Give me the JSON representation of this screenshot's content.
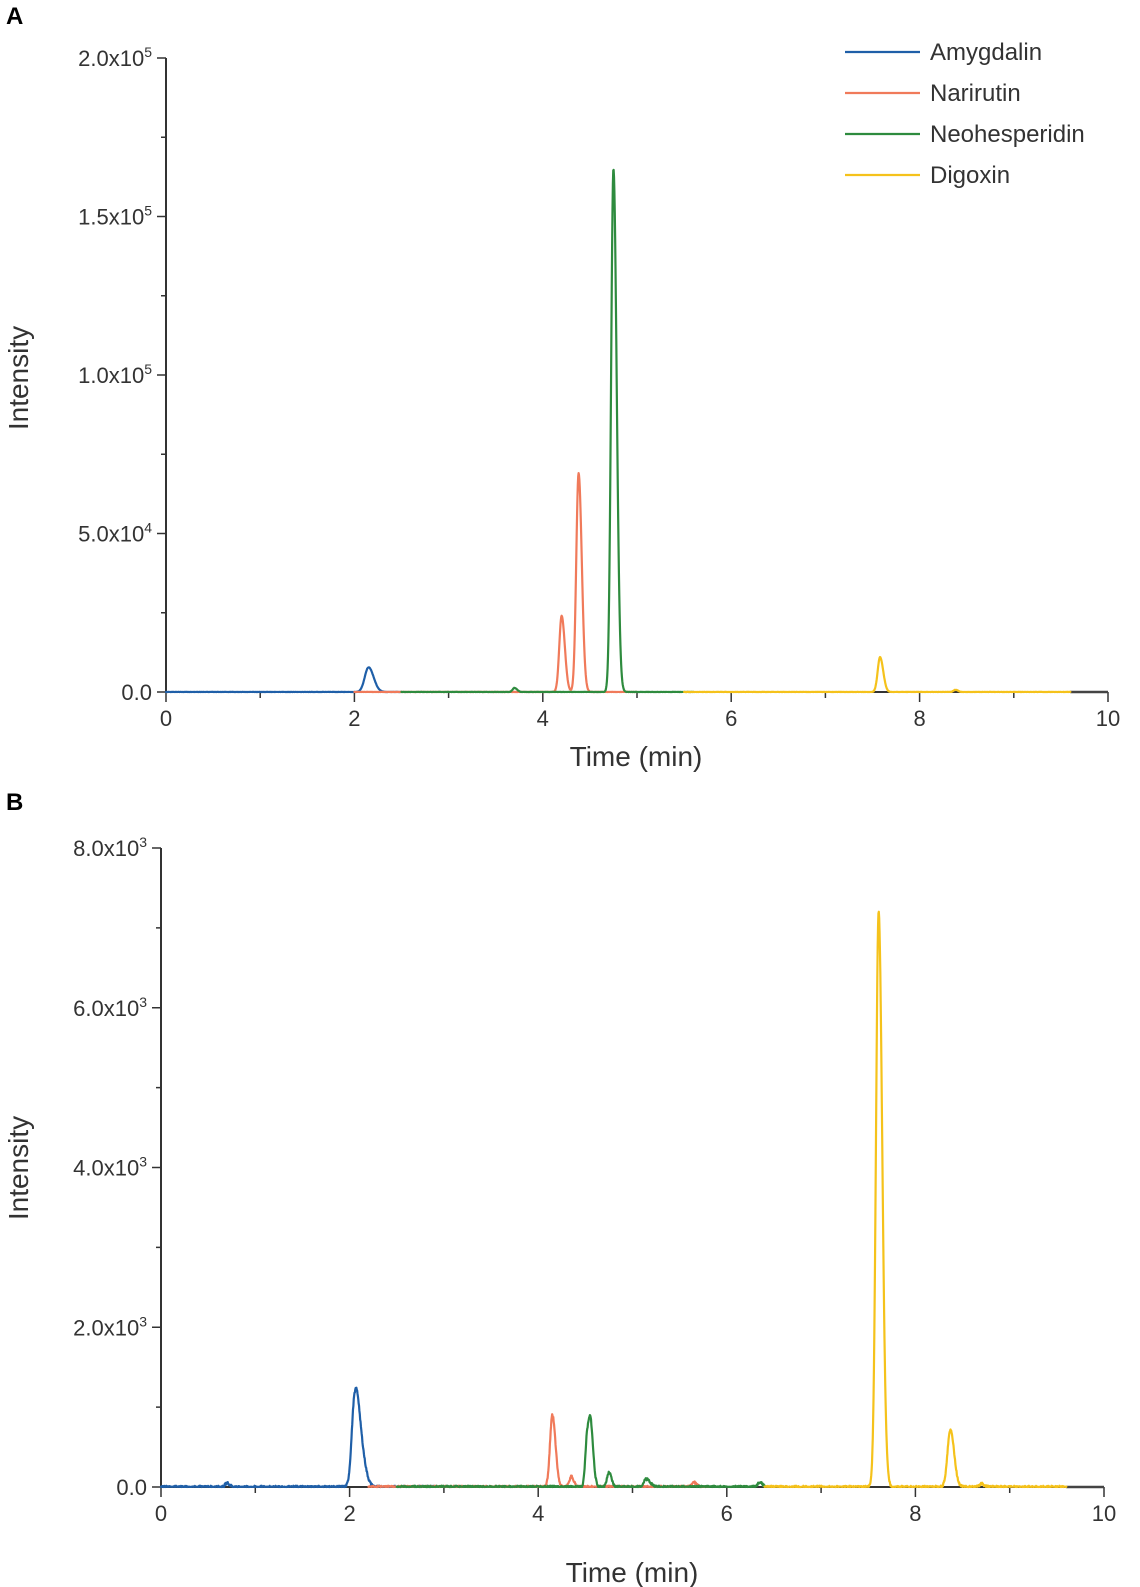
{
  "chart_data": [
    {
      "panel": "A",
      "type": "line",
      "xlabel": "Time (min)",
      "ylabel": "Intensity",
      "xlim": [
        0,
        10
      ],
      "ylim": [
        0,
        200000
      ],
      "x_ticks": [
        "0",
        "2",
        "4",
        "6",
        "8",
        "10"
      ],
      "y_ticks": [
        {
          "value": 0,
          "mantissa": "0.0",
          "exp": ""
        },
        {
          "value": 50000,
          "mantissa": "5.0x10",
          "exp": "4"
        },
        {
          "value": 100000,
          "mantissa": "1.0x10",
          "exp": "5"
        },
        {
          "value": 150000,
          "mantissa": "1.5x10",
          "exp": "5"
        },
        {
          "value": 200000,
          "mantissa": "2.0x10",
          "exp": "5"
        }
      ],
      "legend": {
        "position": "top-right"
      },
      "baseline_end": 10,
      "series": [
        {
          "name": "Amygdalin",
          "color": "#1f5fa8",
          "range": [
            0,
            2.5
          ],
          "peaks": [
            {
              "x": 2.15,
              "y": 7800,
              "w": 0.04
            }
          ]
        },
        {
          "name": "Narirutin",
          "color": "#f07a5a",
          "range": [
            2.0,
            5.0
          ],
          "peaks": [
            {
              "x": 4.2,
              "y": 24000,
              "w": 0.025
            },
            {
              "x": 4.38,
              "y": 69000,
              "w": 0.025
            }
          ]
        },
        {
          "name": "Neohesperidin",
          "color": "#2e8b3e",
          "range": [
            2.5,
            5.6
          ],
          "peaks": [
            {
              "x": 3.7,
              "y": 1300,
              "w": 0.02
            },
            {
              "x": 4.75,
              "y": 165000,
              "w": 0.025
            }
          ]
        },
        {
          "name": "Digoxin",
          "color": "#f5c21b",
          "range": [
            5.5,
            9.6
          ],
          "peaks": [
            {
              "x": 7.58,
              "y": 11000,
              "w": 0.025
            },
            {
              "x": 8.38,
              "y": 700,
              "w": 0.02
            }
          ]
        }
      ]
    },
    {
      "panel": "B",
      "type": "line",
      "xlabel": "Time (min)",
      "ylabel": "Intensity",
      "xlim": [
        0,
        10
      ],
      "ylim": [
        0,
        8000
      ],
      "x_ticks": [
        "0",
        "2",
        "4",
        "6",
        "8",
        "10"
      ],
      "y_ticks": [
        {
          "value": 0,
          "mantissa": "0.0",
          "exp": ""
        },
        {
          "value": 2000,
          "mantissa": "2.0x10",
          "exp": "3"
        },
        {
          "value": 4000,
          "mantissa": "4.0x10",
          "exp": "3"
        },
        {
          "value": 6000,
          "mantissa": "6.0x10",
          "exp": "3"
        },
        {
          "value": 8000,
          "mantissa": "8.0x10",
          "exp": "3"
        }
      ],
      "baseline_end": 10,
      "series": [
        {
          "name": "Amygdalin",
          "color": "#1f5fa8",
          "range": [
            0,
            2.9
          ],
          "peaks": [
            {
              "x": 2.05,
              "y": 880,
              "w": 0.03
            },
            {
              "x": 2.1,
              "y": 600,
              "w": 0.04
            },
            {
              "x": 0.7,
              "y": 50,
              "w": 0.02
            }
          ]
        },
        {
          "name": "Narirutin",
          "color": "#f07a5a",
          "range": [
            2.2,
            5.8
          ],
          "peaks": [
            {
              "x": 4.15,
              "y": 900,
              "w": 0.025
            },
            {
              "x": 4.35,
              "y": 130,
              "w": 0.02
            },
            {
              "x": 5.65,
              "y": 60,
              "w": 0.02
            }
          ]
        },
        {
          "name": "Neohesperidin",
          "color": "#2e8b3e",
          "range": [
            2.5,
            6.4
          ],
          "peaks": [
            {
              "x": 4.52,
              "y": 640,
              "w": 0.02
            },
            {
              "x": 4.56,
              "y": 620,
              "w": 0.02
            },
            {
              "x": 4.75,
              "y": 180,
              "w": 0.02
            },
            {
              "x": 5.15,
              "y": 100,
              "w": 0.03
            },
            {
              "x": 6.35,
              "y": 60,
              "w": 0.02
            }
          ]
        },
        {
          "name": "Digoxin",
          "color": "#f5c21b",
          "range": [
            6.4,
            9.6
          ],
          "peaks": [
            {
              "x": 7.61,
              "y": 7200,
              "w": 0.028
            },
            {
              "x": 8.37,
              "y": 720,
              "w": 0.03
            },
            {
              "x": 8.7,
              "y": 40,
              "w": 0.02
            }
          ]
        }
      ]
    }
  ]
}
